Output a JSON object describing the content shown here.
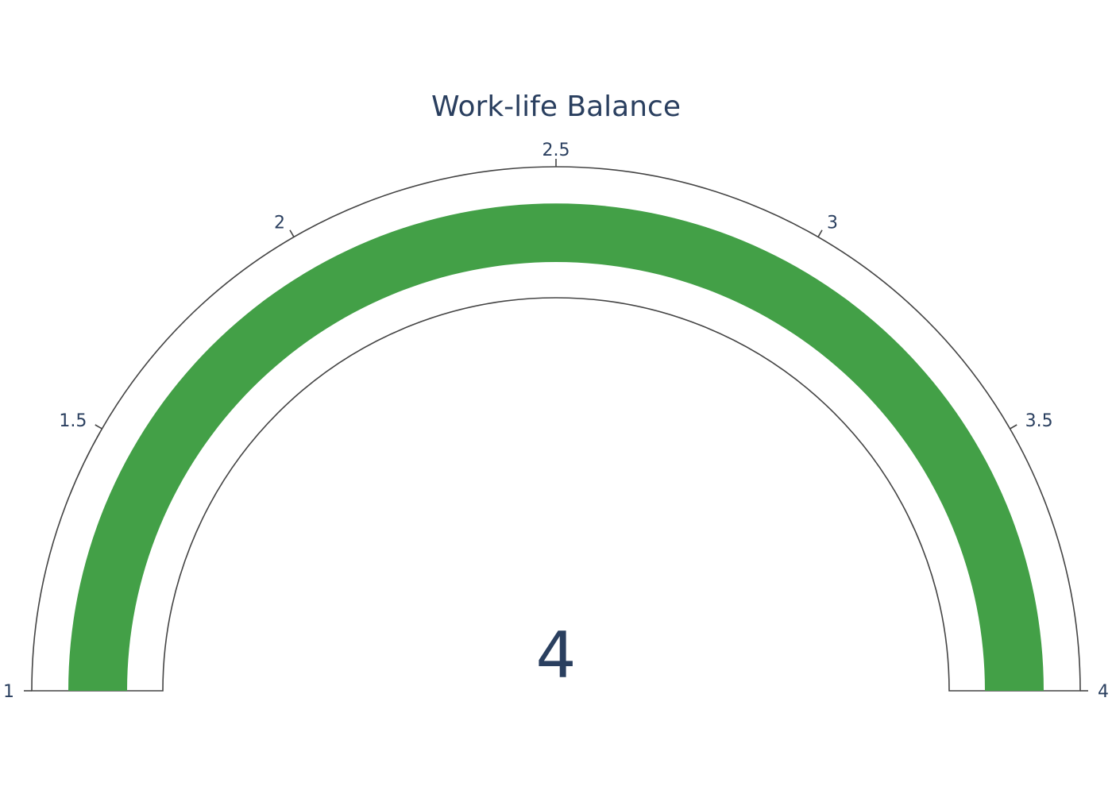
{
  "chart_data": {
    "type": "gauge",
    "title": "Work-life Balance",
    "value": 4,
    "value_label": "4",
    "range": [
      1,
      4
    ],
    "ticks": [
      1,
      1.5,
      2,
      2.5,
      3,
      3.5,
      4
    ],
    "tick_labels": [
      "1",
      "1.5",
      "2",
      "2.5",
      "3",
      "3.5",
      "4"
    ],
    "bar_color": "#43a047",
    "outline_color": "#444444",
    "text_color": "#2a3f5f"
  }
}
